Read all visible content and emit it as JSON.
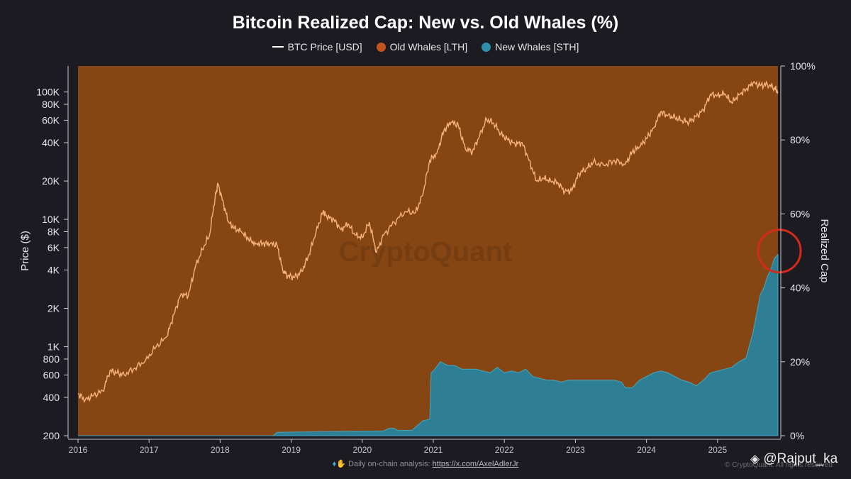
{
  "chart_data": {
    "type": "area",
    "title": "Bitcoin Realized Cap: New vs. Old Whales (%)",
    "legend": [
      {
        "label": "BTC Price [USD]",
        "color": "#ffffff",
        "marker": "line"
      },
      {
        "label": "Old Whales [LTH]",
        "color": "#c2551e",
        "marker": "dot"
      },
      {
        "label": "New Whales [STH]",
        "color": "#2f8fa8",
        "marker": "dot"
      }
    ],
    "legend_position": "top-center",
    "ylabel_left": "Price ($)",
    "ylabel_right": "Realized Cap",
    "y_left_scale": "log",
    "y_left_range": [
      200,
      160000
    ],
    "y_left_ticks": [
      "100K",
      "80K",
      "60K",
      "40K",
      "20K",
      "10K",
      "8K",
      "6K",
      "4K",
      "2K",
      "1K",
      "800",
      "600",
      "400",
      "200"
    ],
    "y_left_tick_values": [
      100000,
      80000,
      60000,
      40000,
      20000,
      10000,
      8000,
      6000,
      4000,
      2000,
      1000,
      800,
      600,
      400,
      200
    ],
    "y_right_range": [
      0,
      100
    ],
    "y_right_ticks": [
      "100%",
      "80%",
      "60%",
      "40%",
      "20%",
      "0%"
    ],
    "y_right_tick_values": [
      100,
      80,
      60,
      40,
      20,
      0
    ],
    "x_range": [
      2016.0,
      2025.85
    ],
    "x_ticks": [
      "2016",
      "2017",
      "2018",
      "2019",
      "2020",
      "2021",
      "2022",
      "2023",
      "2024",
      "2025"
    ],
    "x_tick_values": [
      2016,
      2017,
      2018,
      2019,
      2020,
      2021,
      2022,
      2023,
      2024,
      2025
    ],
    "grid": false,
    "series": [
      {
        "name": "BTC Price [USD]",
        "axis": "left",
        "color": "#f7b37a",
        "x": [
          2016.0,
          2016.1,
          2016.2,
          2016.35,
          2016.45,
          2016.55,
          2016.65,
          2016.8,
          2016.95,
          2017.1,
          2017.25,
          2017.35,
          2017.45,
          2017.55,
          2017.65,
          2017.75,
          2017.85,
          2017.93,
          2017.97,
          2018.05,
          2018.12,
          2018.2,
          2018.3,
          2018.4,
          2018.5,
          2018.6,
          2018.7,
          2018.8,
          2018.88,
          2018.95,
          2019.05,
          2019.15,
          2019.25,
          2019.35,
          2019.45,
          2019.5,
          2019.6,
          2019.7,
          2019.8,
          2019.9,
          2020.0,
          2020.1,
          2020.2,
          2020.3,
          2020.45,
          2020.6,
          2020.75,
          2020.85,
          2020.95,
          2021.05,
          2021.15,
          2021.25,
          2021.35,
          2021.45,
          2021.55,
          2021.65,
          2021.75,
          2021.85,
          2021.95,
          2022.05,
          2022.15,
          2022.25,
          2022.35,
          2022.45,
          2022.55,
          2022.65,
          2022.75,
          2022.85,
          2022.95,
          2023.05,
          2023.15,
          2023.25,
          2023.4,
          2023.55,
          2023.7,
          2023.8,
          2023.9,
          2024.0,
          2024.1,
          2024.2,
          2024.3,
          2024.4,
          2024.5,
          2024.6,
          2024.7,
          2024.8,
          2024.9,
          2025.0,
          2025.1,
          2025.2,
          2025.3,
          2025.4,
          2025.5,
          2025.6,
          2025.7,
          2025.8,
          2025.85
        ],
        "values": [
          430,
          380,
          410,
          450,
          650,
          620,
          600,
          680,
          780,
          1000,
          1200,
          1800,
          2600,
          2500,
          4200,
          5800,
          7500,
          15000,
          19000,
          13000,
          9500,
          8500,
          8000,
          7000,
          6400,
          6500,
          6400,
          6300,
          4000,
          3600,
          3500,
          3900,
          5300,
          8000,
          11500,
          10500,
          10000,
          8300,
          9200,
          7500,
          7200,
          9500,
          5500,
          7500,
          9500,
          11500,
          11300,
          15500,
          29000,
          33000,
          50000,
          58000,
          55000,
          36000,
          34000,
          45000,
          61000,
          57000,
          47000,
          42000,
          39000,
          40000,
          29000,
          20000,
          21000,
          20000,
          19500,
          16500,
          16800,
          23000,
          25000,
          28000,
          26500,
          29000,
          27000,
          34000,
          37000,
          43000,
          52000,
          70000,
          65000,
          63000,
          60000,
          58000,
          64000,
          72000,
          96000,
          94000,
          97000,
          82000,
          95000,
          105000,
          118000,
          112000,
          115000,
          108000,
          100000
        ]
      },
      {
        "name": "New Whales [STH]",
        "axis": "right",
        "color": "#2f8fa8",
        "x": [
          2016.0,
          2018.75,
          2018.8,
          2019.5,
          2020.3,
          2020.38,
          2020.45,
          2020.5,
          2020.7,
          2020.85,
          2020.95,
          2020.97,
          2021.0,
          2021.1,
          2021.2,
          2021.3,
          2021.4,
          2021.5,
          2021.6,
          2021.7,
          2021.8,
          2021.9,
          2022.0,
          2022.1,
          2022.2,
          2022.3,
          2022.4,
          2022.5,
          2022.6,
          2022.7,
          2022.8,
          2022.9,
          2023.0,
          2023.2,
          2023.4,
          2023.55,
          2023.65,
          2023.7,
          2023.8,
          2023.9,
          2024.0,
          2024.1,
          2024.2,
          2024.3,
          2024.4,
          2024.5,
          2024.6,
          2024.7,
          2024.8,
          2024.9,
          2025.0,
          2025.1,
          2025.2,
          2025.3,
          2025.4,
          2025.5,
          2025.55,
          2025.6,
          2025.65,
          2025.7,
          2025.75,
          2025.8,
          2025.85
        ],
        "values": [
          0,
          0,
          0.9,
          1.1,
          1.3,
          2.0,
          2.0,
          1.4,
          1.5,
          4.0,
          4.5,
          17.0,
          17.5,
          20.0,
          19.0,
          19.0,
          18.0,
          18.0,
          18.0,
          17.5,
          17.0,
          18.5,
          17.0,
          17.5,
          17.0,
          18.0,
          16.0,
          15.5,
          15.0,
          15.0,
          14.5,
          15.0,
          15.0,
          15.0,
          15.0,
          15.0,
          14.5,
          13.0,
          13.0,
          15.0,
          16.0,
          17.0,
          17.5,
          17.0,
          16.0,
          15.0,
          14.5,
          13.5,
          15.0,
          17.0,
          17.5,
          18.0,
          18.5,
          20.0,
          21.0,
          28.0,
          33.0,
          38.0,
          40.0,
          43.0,
          45.0,
          48.0,
          49.0
        ]
      },
      {
        "name": "Old Whales [LTH]",
        "axis": "right",
        "color": "#c2551e",
        "fill": "remainder to 100%"
      }
    ],
    "annotations": [
      {
        "type": "circle",
        "color": "#d32a1a",
        "marks": "latest New Whales [STH] value",
        "x": 2025.85,
        "y": 49
      }
    ]
  },
  "footer": {
    "text": "Daily on-chain analysis:",
    "link": "https://x.com/AxelAdlerJr"
  },
  "watermarks": {
    "center": "CryptoQuant",
    "handle": "@Rajput_ka",
    "copyright": "© CryptoQuant. All rights reserved"
  }
}
